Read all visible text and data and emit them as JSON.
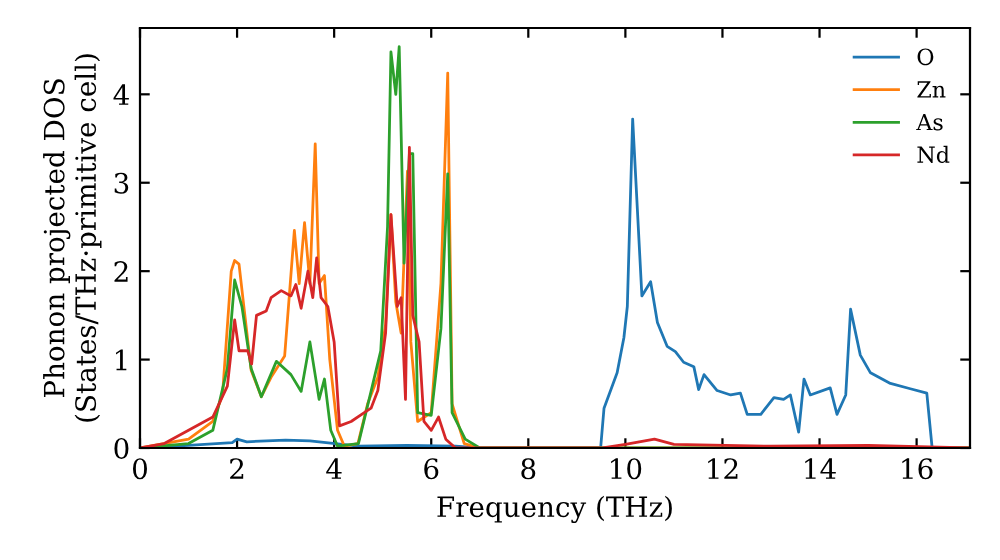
{
  "chart_data": {
    "type": "line",
    "xlabel": "Frequency (THz)",
    "ylabel": "Phonon projected DOS\n(States/THz·primitive cell)",
    "xlim": [
      0,
      17.1
    ],
    "ylim": [
      0,
      4.75
    ],
    "xticks": [
      0,
      2,
      4,
      6,
      8,
      10,
      12,
      14,
      16
    ],
    "yticks": [
      0,
      1,
      2,
      3,
      4
    ],
    "grid": false,
    "legend": "top right",
    "marker": "none",
    "line_style": "solid",
    "series": [
      {
        "name": "O",
        "color": "#1f77b4",
        "x": [
          0,
          1.0,
          1.9,
          2.0,
          2.2,
          3.0,
          3.5,
          4.5,
          5.5,
          6.5,
          7.0,
          9.49,
          9.56,
          9.83,
          9.97,
          10.04,
          10.15,
          10.34,
          10.52,
          10.66,
          10.86,
          11.03,
          11.2,
          11.41,
          11.51,
          11.62,
          11.89,
          12.17,
          12.37,
          12.51,
          12.79,
          13.06,
          13.26,
          13.4,
          13.57,
          13.68,
          13.81,
          14.22,
          14.36,
          14.54,
          14.64,
          14.84,
          15.05,
          15.46,
          15.87,
          16.21,
          16.32,
          17.1
        ],
        "values": [
          0,
          0.03,
          0.06,
          0.1,
          0.07,
          0.09,
          0.08,
          0.02,
          0.03,
          0.02,
          0,
          0,
          0.45,
          0.85,
          1.25,
          1.6,
          3.72,
          1.72,
          1.88,
          1.42,
          1.15,
          1.09,
          0.97,
          0.92,
          0.66,
          0.83,
          0.65,
          0.6,
          0.62,
          0.38,
          0.38,
          0.57,
          0.55,
          0.6,
          0.18,
          0.78,
          0.6,
          0.68,
          0.38,
          0.6,
          1.57,
          1.05,
          0.85,
          0.73,
          0.67,
          0.62,
          0,
          0
        ]
      },
      {
        "name": "Zn",
        "color": "#ff7f0e",
        "x": [
          0,
          1.0,
          1.5,
          1.7,
          1.88,
          1.95,
          2.04,
          2.15,
          2.29,
          2.5,
          2.7,
          2.98,
          3.18,
          3.28,
          3.39,
          3.5,
          3.61,
          3.69,
          3.8,
          3.91,
          4.07,
          4.21,
          4.49,
          4.69,
          4.9,
          5.06,
          5.17,
          5.27,
          5.38,
          5.51,
          5.58,
          5.72,
          6.0,
          6.2,
          6.34,
          6.43,
          6.68,
          7.0,
          17.1
        ],
        "values": [
          0,
          0.1,
          0.3,
          0.6,
          2.0,
          2.12,
          2.08,
          1.55,
          0.88,
          0.58,
          0.8,
          1.04,
          2.46,
          1.86,
          2.55,
          1.86,
          3.44,
          1.86,
          1.95,
          1.0,
          0.2,
          0.02,
          0.05,
          0.5,
          0.8,
          1.4,
          2.64,
          1.65,
          1.3,
          3.13,
          1.2,
          0.3,
          0.4,
          1.86,
          4.24,
          0.5,
          0.05,
          0,
          0
        ]
      },
      {
        "name": "As",
        "color": "#2ca02c",
        "x": [
          0,
          1.0,
          1.5,
          1.8,
          1.95,
          2.1,
          2.29,
          2.5,
          2.81,
          3.11,
          3.32,
          3.5,
          3.69,
          3.8,
          3.93,
          4.07,
          4.5,
          4.76,
          4.96,
          5.1,
          5.17,
          5.27,
          5.34,
          5.44,
          5.55,
          5.62,
          5.72,
          6.0,
          6.2,
          6.34,
          6.43,
          6.7,
          7.0,
          17.1
        ],
        "values": [
          0,
          0.05,
          0.2,
          0.9,
          1.9,
          1.6,
          0.9,
          0.58,
          0.98,
          0.83,
          0.64,
          1.2,
          0.55,
          0.78,
          0.2,
          0.02,
          0.05,
          0.64,
          1.1,
          2.5,
          4.48,
          4.0,
          4.54,
          2.09,
          3.33,
          3.33,
          0.4,
          0.37,
          1.35,
          3.1,
          0.4,
          0.1,
          0,
          0
        ]
      },
      {
        "name": "Nd",
        "color": "#d62728",
        "x": [
          0,
          0.5,
          1.0,
          1.5,
          1.8,
          1.95,
          2.04,
          2.22,
          2.3,
          2.4,
          2.6,
          2.7,
          2.91,
          3.11,
          3.21,
          3.32,
          3.46,
          3.56,
          3.64,
          3.73,
          3.87,
          4.0,
          4.11,
          4.35,
          4.62,
          4.76,
          4.9,
          5.06,
          5.17,
          5.3,
          5.38,
          5.47,
          5.55,
          5.62,
          5.75,
          5.85,
          6.0,
          6.15,
          6.3,
          6.5,
          9.5,
          10.0,
          10.6,
          11.0,
          13.0,
          15.0,
          17.1
        ],
        "values": [
          0,
          0.05,
          0.2,
          0.35,
          0.7,
          1.45,
          1.1,
          1.1,
          0.95,
          1.5,
          1.55,
          1.7,
          1.78,
          1.72,
          1.85,
          1.58,
          2.0,
          1.7,
          2.15,
          1.7,
          1.6,
          1.2,
          0.25,
          0.3,
          0.4,
          0.45,
          0.65,
          1.3,
          2.64,
          1.6,
          1.7,
          0.55,
          3.4,
          1.5,
          1.2,
          0.3,
          0.2,
          0.35,
          0.1,
          0,
          0,
          0.04,
          0.1,
          0.04,
          0.02,
          0.03,
          0
        ]
      }
    ]
  }
}
